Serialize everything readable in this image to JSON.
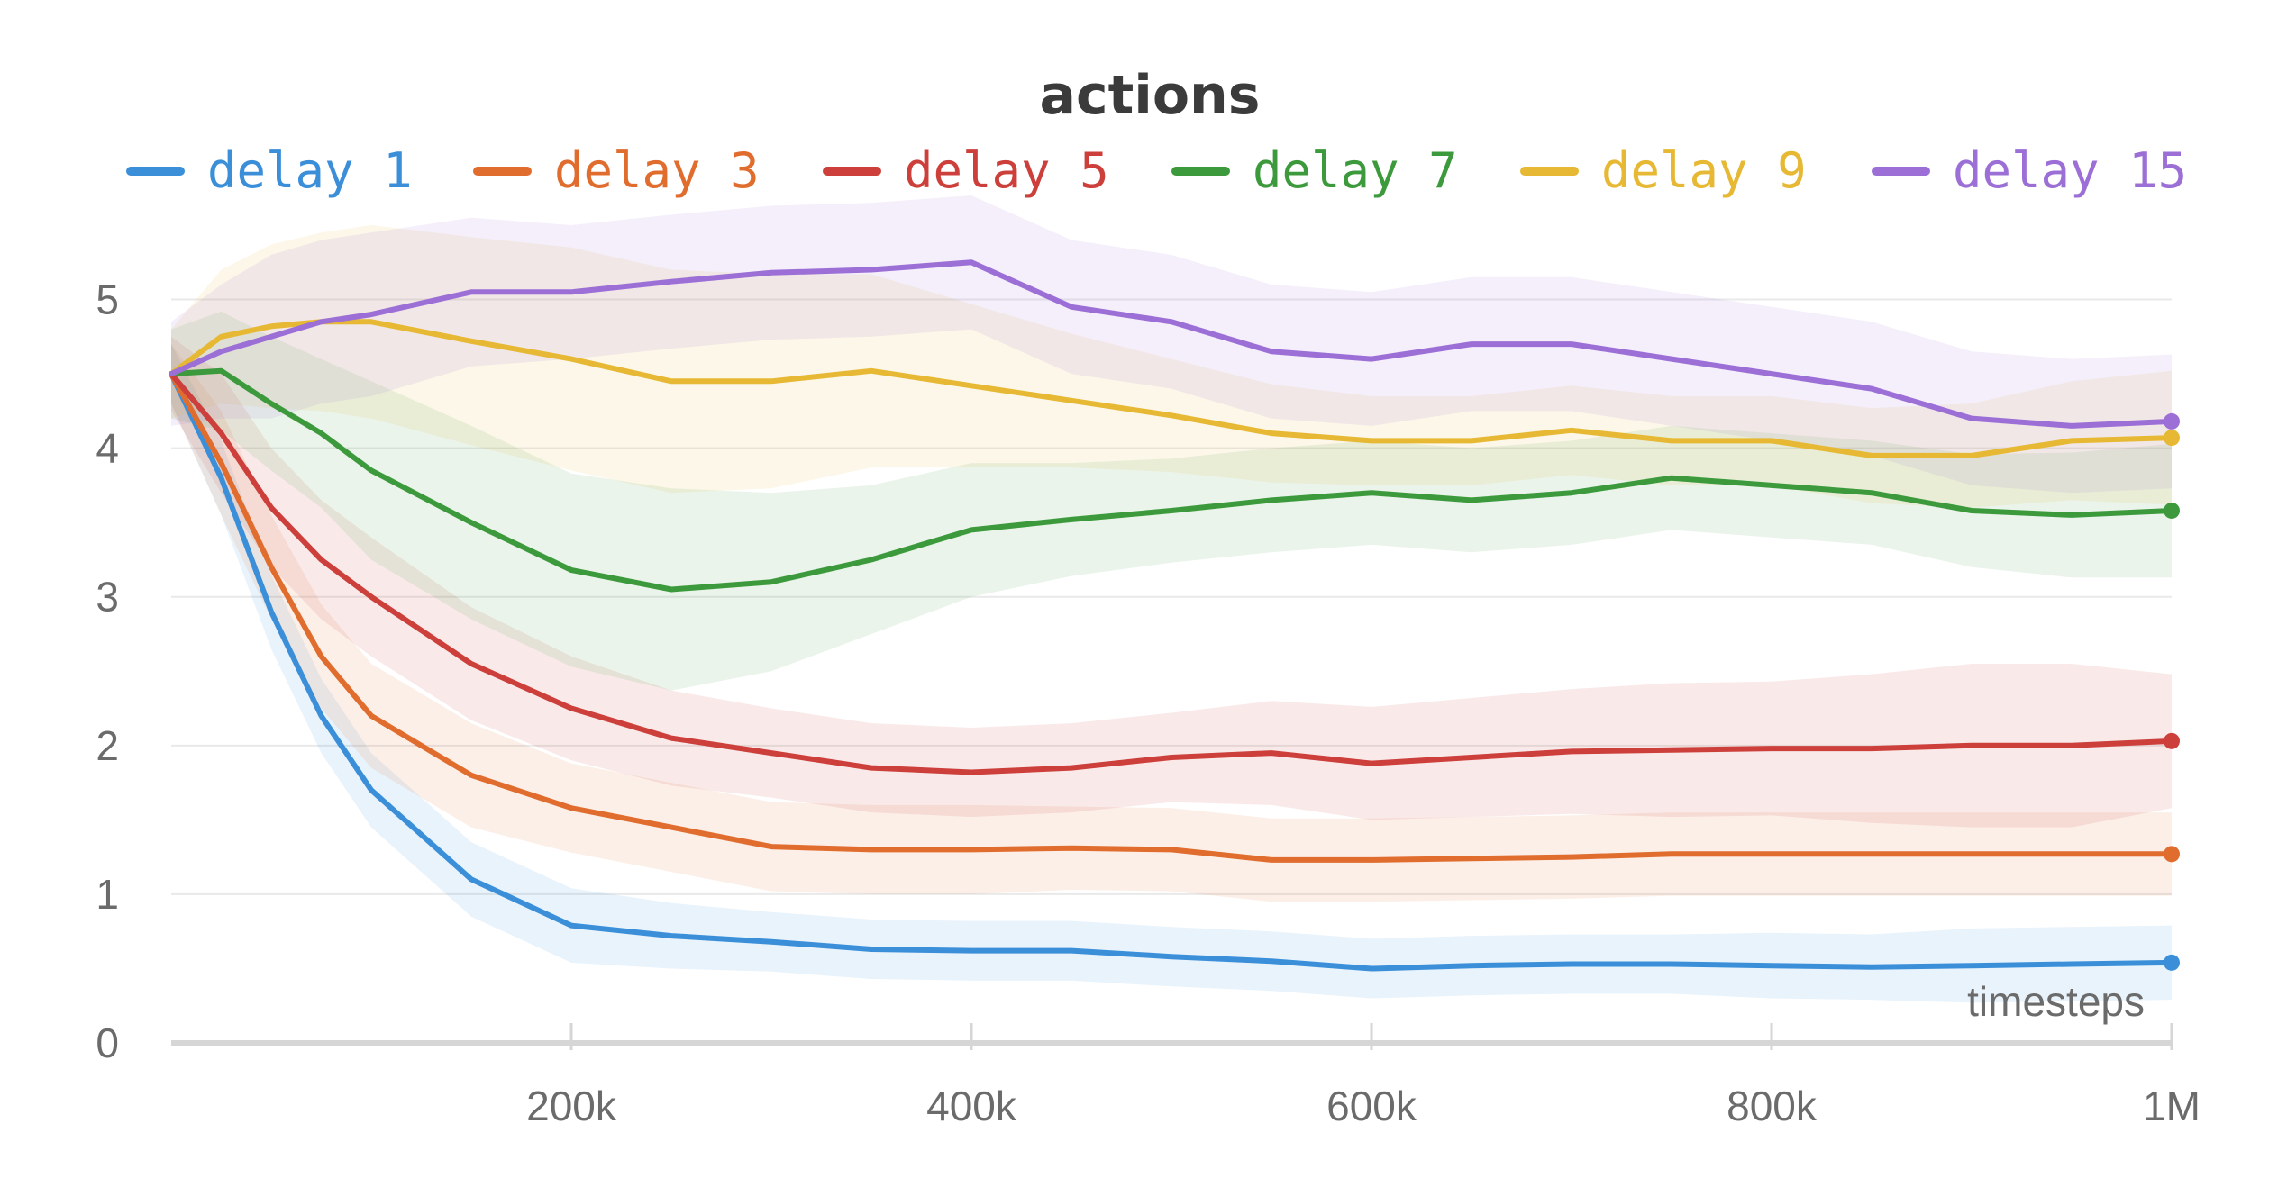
{
  "chart_data": {
    "type": "line",
    "title": "actions",
    "xlabel": "timesteps",
    "ylabel": "",
    "xlim": [
      0,
      1000000
    ],
    "ylim": [
      0,
      5.5
    ],
    "x_ticks": [
      {
        "value": 200000,
        "label": "200k"
      },
      {
        "value": 400000,
        "label": "400k"
      },
      {
        "value": 600000,
        "label": "600k"
      },
      {
        "value": 800000,
        "label": "800k"
      },
      {
        "value": 1000000,
        "label": "1M"
      }
    ],
    "y_ticks": [
      {
        "value": 0,
        "label": "0"
      },
      {
        "value": 1,
        "label": "1"
      },
      {
        "value": 2,
        "label": "2"
      },
      {
        "value": 3,
        "label": "3"
      },
      {
        "value": 4,
        "label": "4"
      },
      {
        "value": 5,
        "label": "5"
      }
    ],
    "grid": true,
    "legend_position": "top",
    "x": [
      0,
      25000,
      50000,
      75000,
      100000,
      150000,
      200000,
      250000,
      300000,
      350000,
      400000,
      450000,
      500000,
      550000,
      600000,
      650000,
      700000,
      750000,
      800000,
      850000,
      900000,
      950000,
      1000000
    ],
    "series": [
      {
        "name": "delay 1",
        "color": "#3b8fd9",
        "values": [
          4.5,
          3.8,
          2.9,
          2.2,
          1.7,
          1.1,
          0.79,
          0.72,
          0.68,
          0.63,
          0.62,
          0.62,
          0.58,
          0.55,
          0.5,
          0.52,
          0.53,
          0.53,
          0.52,
          0.51,
          0.52,
          0.53,
          0.54
        ],
        "band": [
          0.2,
          0.25,
          0.25,
          0.25,
          0.25,
          0.25,
          0.25,
          0.22,
          0.2,
          0.2,
          0.2,
          0.2,
          0.2,
          0.2,
          0.2,
          0.2,
          0.2,
          0.2,
          0.22,
          0.22,
          0.25,
          0.25,
          0.25
        ]
      },
      {
        "name": "delay 3",
        "color": "#e06c2e",
        "values": [
          4.5,
          3.9,
          3.2,
          2.6,
          2.2,
          1.8,
          1.58,
          1.45,
          1.32,
          1.3,
          1.3,
          1.31,
          1.3,
          1.23,
          1.23,
          1.24,
          1.25,
          1.27,
          1.27,
          1.27,
          1.27,
          1.27,
          1.27
        ],
        "band": [
          0.2,
          0.35,
          0.35,
          0.35,
          0.35,
          0.35,
          0.3,
          0.3,
          0.3,
          0.3,
          0.3,
          0.28,
          0.28,
          0.28,
          0.28,
          0.28,
          0.28,
          0.28,
          0.28,
          0.28,
          0.28,
          0.28,
          0.28
        ]
      },
      {
        "name": "delay 5",
        "color": "#cc3f3a",
        "values": [
          4.5,
          4.1,
          3.6,
          3.25,
          3.0,
          2.55,
          2.25,
          2.05,
          1.95,
          1.85,
          1.82,
          1.85,
          1.92,
          1.95,
          1.88,
          1.92,
          1.96,
          1.97,
          1.98,
          1.98,
          2.0,
          2.0,
          2.03
        ],
        "band": [
          0.25,
          0.4,
          0.4,
          0.4,
          0.4,
          0.38,
          0.35,
          0.32,
          0.3,
          0.3,
          0.3,
          0.3,
          0.3,
          0.35,
          0.38,
          0.4,
          0.42,
          0.45,
          0.45,
          0.5,
          0.55,
          0.55,
          0.45
        ]
      },
      {
        "name": "delay 7",
        "color": "#3c9a3c",
        "values": [
          4.5,
          4.52,
          4.3,
          4.1,
          3.85,
          3.5,
          3.18,
          3.05,
          3.1,
          3.25,
          3.45,
          3.52,
          3.58,
          3.65,
          3.7,
          3.65,
          3.7,
          3.8,
          3.75,
          3.7,
          3.58,
          3.55,
          3.58
        ],
        "band": [
          0.3,
          0.4,
          0.45,
          0.5,
          0.6,
          0.65,
          0.65,
          0.68,
          0.6,
          0.5,
          0.45,
          0.38,
          0.35,
          0.35,
          0.35,
          0.35,
          0.35,
          0.35,
          0.35,
          0.35,
          0.38,
          0.42,
          0.45
        ]
      },
      {
        "name": "delay 9",
        "color": "#e6b833",
        "values": [
          4.5,
          4.75,
          4.82,
          4.85,
          4.85,
          4.72,
          4.6,
          4.45,
          4.45,
          4.52,
          4.42,
          4.32,
          4.22,
          4.1,
          4.05,
          4.05,
          4.12,
          4.05,
          4.05,
          3.95,
          3.95,
          4.05,
          4.07
        ],
        "band": [
          0.3,
          0.45,
          0.55,
          0.6,
          0.65,
          0.7,
          0.75,
          0.75,
          0.72,
          0.65,
          0.55,
          0.45,
          0.38,
          0.33,
          0.3,
          0.3,
          0.3,
          0.3,
          0.3,
          0.32,
          0.35,
          0.4,
          0.45
        ]
      },
      {
        "name": "delay 15",
        "color": "#9b6fd6",
        "values": [
          4.5,
          4.65,
          4.75,
          4.85,
          4.9,
          5.05,
          5.05,
          5.12,
          5.18,
          5.2,
          5.25,
          4.95,
          4.85,
          4.65,
          4.6,
          4.7,
          4.7,
          4.6,
          4.5,
          4.4,
          4.2,
          4.15,
          4.18
        ],
        "band": [
          0.35,
          0.45,
          0.55,
          0.55,
          0.55,
          0.5,
          0.45,
          0.45,
          0.45,
          0.45,
          0.45,
          0.45,
          0.45,
          0.45,
          0.45,
          0.45,
          0.45,
          0.45,
          0.45,
          0.45,
          0.45,
          0.45,
          0.45
        ]
      }
    ]
  }
}
